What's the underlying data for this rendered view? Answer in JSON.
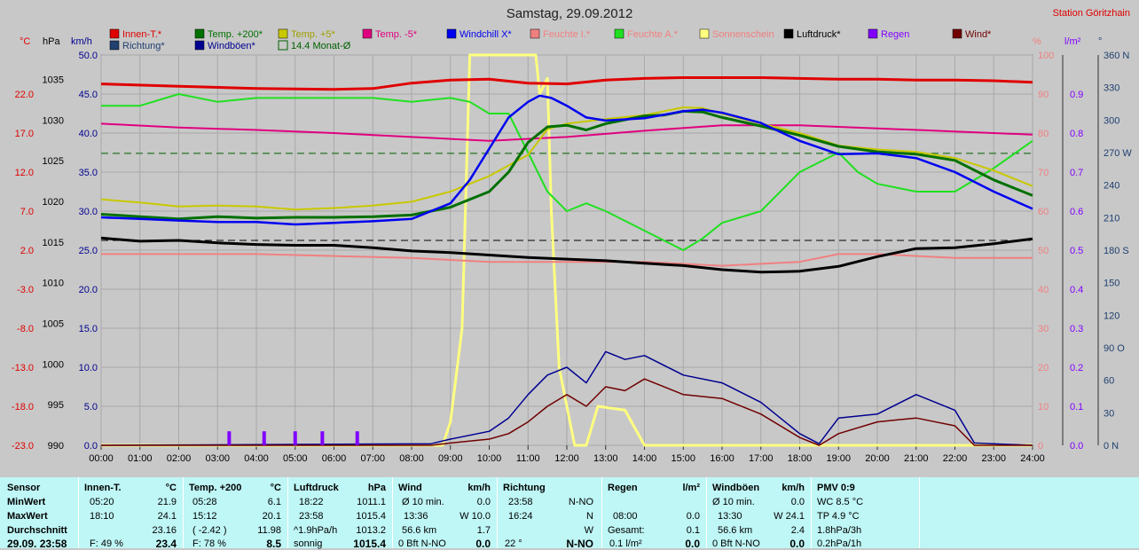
{
  "title": "Samstag, 29.09.2012",
  "station": "Station Göritzhain",
  "colors": {
    "background": "#c8c8c8",
    "innen": "#e00000",
    "temp200": "#007000",
    "temp5": "#c8c800",
    "tempm5": "#e0007f",
    "windchill": "#0000f0",
    "feuchteI": "#f08080",
    "feuchteA": "#20e020",
    "sonne": "#ffff80",
    "luftdruck": "#000000",
    "regen": "#8000ff",
    "wind": "#700000",
    "richtung": "#204070",
    "windboen": "#000090",
    "monat": "#006000"
  },
  "axis_headers": {
    "temp": "°C",
    "hpa": "hPa",
    "kmh": "km/h",
    "pct": "%",
    "lm2": "l/m²",
    "deg": "°"
  },
  "legend": {
    "row1": [
      "Innen-T.*",
      "Temp. +200*",
      "Temp. +5*",
      "Temp. -5*",
      "Windchill X*",
      "Feuchte I.*",
      "Feuchte A.*",
      "Sonnenschein",
      "Luftdruck*",
      "Regen",
      "Wind*"
    ],
    "row2": [
      "Richtung*",
      "Windböen*",
      "14.4 Monat-Ø"
    ]
  },
  "chart_data": {
    "type": "line",
    "title": "Samstag, 29.09.2012",
    "x_ticks": [
      "00:00",
      "01:00",
      "02:00",
      "03:00",
      "04:00",
      "05:00",
      "06:00",
      "07:00",
      "08:00",
      "09:00",
      "10:00",
      "11:00",
      "12:00",
      "13:00",
      "14:00",
      "15:00",
      "16:00",
      "17:00",
      "18:00",
      "19:00",
      "20:00",
      "21:00",
      "22:00",
      "23:00",
      "24:00"
    ],
    "xlim": [
      0,
      24
    ],
    "axes": {
      "temp_c": {
        "ylim": [
          -23.0,
          27.0
        ],
        "ticks": [
          "22.0",
          "17.0",
          "12.0",
          "7.0",
          "2.0",
          "-3.0",
          "-8.0",
          "-13.0",
          "-18.0",
          "-23.0"
        ]
      },
      "pressure_hpa": {
        "ylim": [
          990,
          1038
        ],
        "ticks": [
          "1035",
          "1030",
          "1025",
          "1020",
          "1015",
          "1010",
          "1005",
          "1000",
          "995",
          "990"
        ]
      },
      "wind_kmh": {
        "ylim": [
          0,
          50
        ],
        "ticks": [
          "50.0",
          "45.0",
          "40.0",
          "35.0",
          "30.0",
          "25.0",
          "20.0",
          "15.0",
          "10.0",
          "5.0",
          "0.0"
        ]
      },
      "humidity_pct": {
        "ylim": [
          0,
          100
        ],
        "ticks": [
          "100",
          "90",
          "80",
          "70",
          "60",
          "50",
          "40",
          "30",
          "20",
          "10",
          "0"
        ]
      },
      "rain_lm2": {
        "ylim": [
          0,
          1.0
        ],
        "ticks": [
          "0.9",
          "0.8",
          "0.7",
          "0.6",
          "0.5",
          "0.4",
          "0.3",
          "0.2",
          "0.1",
          "0.0"
        ]
      },
      "direction_deg": {
        "ylim": [
          0,
          360
        ],
        "ticks": [
          "360 N",
          "330",
          "300",
          "270 W",
          "240",
          "210",
          "180 S",
          "150",
          "120",
          "90 O",
          "60",
          "30",
          "0 N"
        ]
      }
    },
    "reference_lines": {
      "month_avg_temp_c": 14.4,
      "pressure_dashed_hpa": 1015.2
    },
    "series": [
      {
        "name": "Innen-T.*",
        "axis": "temp_c",
        "x": [
          0,
          2,
          4,
          6,
          7,
          8,
          9,
          10,
          11,
          12,
          13,
          14,
          15,
          16,
          17,
          18,
          19,
          20,
          21,
          22,
          23,
          24
        ],
        "values": [
          23.3,
          23.0,
          22.7,
          22.6,
          22.7,
          23.4,
          23.8,
          23.9,
          23.4,
          23.3,
          23.8,
          24.0,
          24.1,
          24.1,
          24.1,
          24.0,
          23.9,
          23.9,
          23.8,
          23.8,
          23.7,
          23.5
        ]
      },
      {
        "name": "Temp. +200*",
        "axis": "temp_c",
        "x": [
          0,
          1,
          2,
          3,
          4,
          5,
          6,
          7,
          8,
          9,
          10,
          10.5,
          11,
          11.5,
          12,
          12.5,
          13,
          14,
          14.5,
          15,
          15.5,
          16,
          17,
          18,
          19,
          20,
          21,
          22,
          23,
          24
        ],
        "values": [
          6.6,
          6.3,
          6.0,
          6.3,
          6.1,
          6.2,
          6.2,
          6.3,
          6.5,
          7.5,
          9.5,
          12.0,
          15.8,
          17.8,
          18.0,
          17.4,
          18.2,
          19.2,
          19.3,
          19.8,
          19.7,
          19.0,
          17.9,
          16.7,
          15.3,
          14.6,
          14.3,
          13.5,
          11.0,
          9.0
        ]
      },
      {
        "name": "Temp. +5*",
        "axis": "temp_c",
        "x": [
          0,
          1,
          2,
          3,
          4,
          5,
          6,
          7,
          8,
          9,
          10,
          11,
          11.5,
          12,
          13,
          14,
          15,
          15.5,
          16,
          17,
          18,
          19,
          20,
          21,
          22,
          23,
          24
        ],
        "values": [
          8.5,
          8.1,
          7.6,
          7.7,
          7.6,
          7.2,
          7.4,
          7.7,
          8.2,
          9.5,
          11.5,
          14.2,
          17.5,
          18.2,
          18.8,
          19.3,
          20.3,
          20.2,
          19.5,
          18.2,
          17.0,
          15.4,
          14.9,
          14.6,
          13.8,
          12.2,
          10.2
        ]
      },
      {
        "name": "Temp. -5*",
        "axis": "temp_c",
        "x": [
          0,
          2,
          4,
          6,
          8,
          10,
          12,
          14,
          16,
          18,
          20,
          22,
          24
        ],
        "values": [
          18.2,
          17.7,
          17.4,
          17.0,
          16.5,
          16.0,
          16.5,
          17.3,
          18.0,
          18.0,
          17.6,
          17.2,
          16.8
        ]
      },
      {
        "name": "Windchill X*",
        "axis": "temp_c",
        "x": [
          0,
          1,
          2,
          3,
          4,
          5,
          6,
          7,
          8,
          9,
          9.5,
          10,
          10.5,
          11,
          11.3,
          11.6,
          12,
          12.5,
          13,
          14,
          15,
          15.5,
          16,
          17,
          18,
          19,
          20,
          21,
          22,
          23,
          24
        ],
        "values": [
          6.2,
          6.0,
          5.8,
          5.6,
          5.6,
          5.3,
          5.5,
          5.7,
          6.0,
          8.0,
          11.0,
          15.0,
          19.0,
          21.0,
          21.8,
          21.5,
          20.5,
          19.0,
          18.6,
          18.9,
          19.8,
          20.0,
          19.6,
          18.3,
          16.0,
          14.3,
          14.4,
          13.8,
          12.0,
          9.5,
          7.3
        ]
      },
      {
        "name": "Feuchte I.*",
        "axis": "humidity_pct",
        "x": [
          0,
          4,
          8,
          10,
          12,
          14,
          16,
          18,
          19,
          20,
          22,
          24
        ],
        "values": [
          49,
          49,
          48,
          47,
          47,
          47,
          46,
          47,
          49,
          49,
          48,
          48
        ]
      },
      {
        "name": "Feuchte A.*",
        "axis": "humidity_pct",
        "x": [
          0,
          1,
          2,
          3,
          4,
          5,
          6,
          7,
          8,
          9,
          9.5,
          10,
          10.5,
          11,
          11.5,
          12,
          12.5,
          13,
          14,
          15,
          15.5,
          16,
          17,
          18,
          19,
          19.5,
          20,
          21,
          22,
          23,
          24
        ],
        "values": [
          87,
          87,
          90,
          88,
          89,
          89,
          89,
          89,
          88,
          89,
          88,
          85,
          85,
          75,
          65,
          60,
          62,
          60,
          55,
          50,
          53,
          57,
          60,
          70,
          75,
          70,
          67,
          65,
          65,
          71,
          78
        ]
      },
      {
        "name": "Luftdruck*",
        "axis": "pressure_hpa",
        "x": [
          0,
          1,
          2,
          3,
          4,
          5,
          6,
          7,
          8,
          9,
          10,
          11,
          12,
          13,
          14,
          15,
          16,
          17,
          18,
          19,
          20,
          21,
          22,
          23,
          24
        ],
        "values": [
          1015.5,
          1015.1,
          1015.2,
          1014.9,
          1014.7,
          1014.6,
          1014.6,
          1014.3,
          1013.9,
          1013.7,
          1013.4,
          1013.1,
          1012.9,
          1012.7,
          1012.4,
          1012.1,
          1011.6,
          1011.3,
          1011.4,
          1012.0,
          1013.2,
          1014.2,
          1014.3,
          1014.8,
          1015.4
        ]
      },
      {
        "name": "Sonnenschein",
        "axis": "wind_kmh",
        "x": [
          0,
          8.8,
          9.0,
          9.3,
          9.5,
          10.0,
          11.2,
          11.3,
          11.5,
          11.6,
          11.8,
          12.0,
          12.2,
          12.5,
          12.8,
          13.5,
          14.0,
          24
        ],
        "values": [
          0,
          0,
          3.0,
          15.0,
          50.0,
          50.0,
          50.0,
          45.0,
          47.0,
          30.0,
          10.0,
          5.0,
          0,
          0,
          5.0,
          4.5,
          0,
          0
        ]
      },
      {
        "name": "Wind*",
        "axis": "wind_kmh",
        "x": [
          0,
          8.5,
          9,
          10,
          10.5,
          11,
          11.5,
          12,
          12.5,
          13,
          13.5,
          14,
          15,
          16,
          17,
          18,
          18.5,
          19,
          20,
          21,
          22,
          22.5,
          24
        ],
        "values": [
          0,
          0,
          0.3,
          0.8,
          1.5,
          3.0,
          5.0,
          6.5,
          5.0,
          7.5,
          7.0,
          8.5,
          6.5,
          6.0,
          4.0,
          1.0,
          0,
          1.5,
          3.0,
          3.5,
          2.5,
          0,
          0
        ]
      },
      {
        "name": "Windböen*",
        "axis": "wind_kmh",
        "x": [
          0,
          8.5,
          9,
          10,
          10.5,
          11,
          11.5,
          12,
          12.5,
          13,
          13.5,
          14,
          15,
          16,
          17,
          18,
          18.5,
          19,
          20,
          21,
          22,
          22.5,
          24
        ],
        "values": [
          0,
          0.2,
          0.8,
          1.8,
          3.5,
          6.5,
          9.0,
          10.0,
          8.0,
          12.0,
          11.0,
          11.5,
          9.0,
          8.0,
          5.5,
          1.5,
          0.2,
          3.5,
          4.0,
          6.5,
          4.5,
          0.3,
          0
        ]
      },
      {
        "name": "Regen",
        "axis": "rain_lm2",
        "x": [
          3.3,
          4.2,
          5.0,
          5.7,
          6.6
        ],
        "values": [
          0.02,
          0.02,
          0.02,
          0.02,
          0.02
        ]
      }
    ]
  },
  "stats": {
    "headers": [
      "Sensor",
      "Innen-T.",
      "°C",
      "Temp. +200",
      "°C",
      "Luftdruck",
      "hPa",
      "Wind",
      "km/h",
      "Richtung",
      "Regen",
      "l/m²",
      "Windböen",
      "km/h",
      "PMV 0:9"
    ],
    "rows": {
      "labels": [
        "MinWert",
        "MaxWert",
        "Durchschnitt",
        "29.09. 23:58"
      ],
      "innen": [
        [
          "05:20",
          "21.9"
        ],
        [
          "18:10",
          "24.1"
        ],
        [
          "",
          "23.16"
        ],
        [
          "F: 49 %",
          "23.4"
        ]
      ],
      "temp200": [
        [
          "05:28",
          "6.1"
        ],
        [
          "15:12",
          "20.1"
        ],
        [
          "( -2.42 )",
          "11.98"
        ],
        [
          "F: 78 %",
          "8.5"
        ]
      ],
      "luftdruck": [
        [
          "18:22",
          "1011.1"
        ],
        [
          "23:58",
          "1015.4"
        ],
        [
          "^1.9hPa/h",
          "1013.2"
        ],
        [
          "sonnig",
          "1015.4"
        ]
      ],
      "wind": [
        [
          "Ø 10 min.",
          "0.0"
        ],
        [
          "13:36",
          "W 10.0"
        ],
        [
          "56.6 km",
          "1.7"
        ],
        [
          "0 Bft N-NO",
          "0.0"
        ]
      ],
      "richtung": [
        [
          "23:58",
          "N-NO"
        ],
        [
          "16:24",
          "N"
        ],
        [
          "",
          "W"
        ],
        [
          "22 °",
          "N-NO"
        ]
      ],
      "regen": [
        [
          "",
          ""
        ],
        [
          "08:00",
          "0.0"
        ],
        [
          "Gesamt:",
          "0.1"
        ],
        [
          "0.1 l/m²",
          "0.0"
        ]
      ],
      "windboen": [
        [
          "Ø 10 min.",
          "0.0"
        ],
        [
          "13:30",
          "W 24.1"
        ],
        [
          "56.6 km",
          "2.4"
        ],
        [
          "0 Bft N-NO",
          "0.0"
        ]
      ],
      "pmv": [
        "WC 8.5 °C",
        "TP 4.9 °C",
        "1.8hPa/3h",
        "0.2hPa/1h"
      ]
    }
  }
}
